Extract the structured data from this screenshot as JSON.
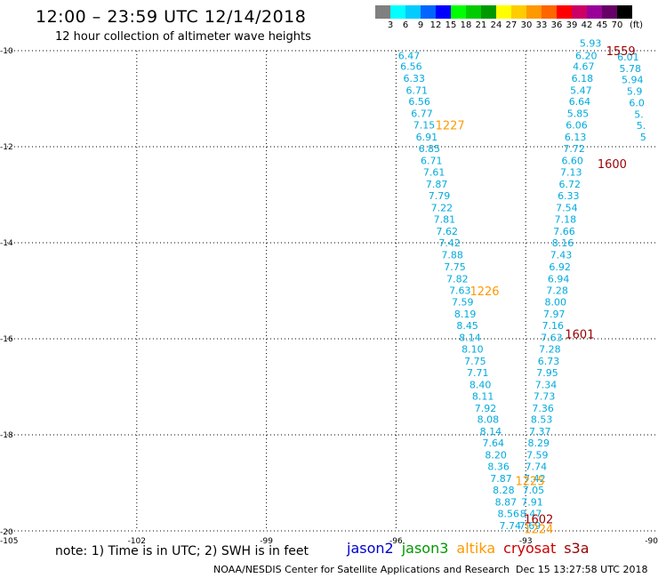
{
  "header": {
    "title": "12:00 – 23:59 UTC 12/14/2018",
    "subtitle": "12 hour collection of altimeter wave heights"
  },
  "scale_legend": {
    "labels": [
      "3",
      "6",
      "9",
      "12",
      "15",
      "18",
      "21",
      "24",
      "27",
      "30",
      "33",
      "36",
      "39",
      "42",
      "45",
      "70"
    ],
    "unit": "(ft)",
    "colors": [
      "#808080",
      "#00ffff",
      "#00ccff",
      "#0066ff",
      "#0000ff",
      "#00ff00",
      "#00cc00",
      "#009900",
      "#ffff00",
      "#ffcc00",
      "#ff9900",
      "#ff6600",
      "#ff0000",
      "#cc0066",
      "#990099",
      "#660066",
      "#000000"
    ]
  },
  "footer": {
    "note": "note: 1) Time is in UTC; 2) SWH is in feet",
    "satellites": [
      {
        "name": "jason2",
        "color": "#0000cc"
      },
      {
        "name": "jason3",
        "color": "#009900"
      },
      {
        "name": "altika",
        "color": "#ff9900"
      },
      {
        "name": "cryosat",
        "color": "#cc0000"
      },
      {
        "name": "s3a",
        "color": "#990000"
      }
    ],
    "credit": "NOAA/NESDIS Center for Satellite Applications and Research",
    "timestamp": "Dec 15 13:27:58 UTC 2018"
  },
  "chart_data": {
    "type": "scatter",
    "title": "12:00 – 23:59 UTC 12/14/2018",
    "subtitle": "12 hour collection of altimeter wave heights",
    "xlim": [
      -105,
      -90
    ],
    "ylim": [
      -20,
      -10
    ],
    "x_ticks": [
      "-105",
      "-102",
      "-99",
      "-96",
      "-93",
      "-90"
    ],
    "y_ticks": [
      "-20",
      "-18",
      "-16",
      "-14",
      "-12",
      "-10"
    ],
    "grid": "dotted",
    "track_color": "#00aadd",
    "time_label_colors": {
      "altika": "#ff9900",
      "s3a": "#990000"
    },
    "tracks": [
      {
        "name": "pass-a",
        "points": [
          {
            "lon": -95.7,
            "lat": -10.1,
            "swh": "6.47"
          },
          {
            "lon": -95.65,
            "lat": -10.32,
            "swh": "6.56"
          },
          {
            "lon": -95.58,
            "lat": -10.57,
            "swh": "6.33"
          },
          {
            "lon": -95.52,
            "lat": -10.82,
            "swh": "6.71"
          },
          {
            "lon": -95.46,
            "lat": -11.06,
            "swh": "6.56"
          },
          {
            "lon": -95.4,
            "lat": -11.31,
            "swh": "6.77"
          },
          {
            "lon": -95.35,
            "lat": -11.55,
            "swh": "7.15"
          },
          {
            "lon": -95.29,
            "lat": -11.8,
            "swh": "6.91"
          },
          {
            "lon": -95.23,
            "lat": -12.04,
            "swh": "6.85"
          },
          {
            "lon": -95.18,
            "lat": -12.29,
            "swh": "6.71"
          },
          {
            "lon": -95.12,
            "lat": -12.53,
            "swh": "7.61"
          },
          {
            "lon": -95.06,
            "lat": -12.78,
            "swh": "7.87"
          },
          {
            "lon": -95.0,
            "lat": -13.02,
            "swh": "7.79"
          },
          {
            "lon": -94.94,
            "lat": -13.27,
            "swh": "7.22"
          },
          {
            "lon": -94.88,
            "lat": -13.51,
            "swh": "7.81"
          },
          {
            "lon": -94.82,
            "lat": -13.76,
            "swh": "7.62"
          },
          {
            "lon": -94.76,
            "lat": -14.0,
            "swh": "7.42"
          },
          {
            "lon": -94.7,
            "lat": -14.25,
            "swh": "7.88"
          },
          {
            "lon": -94.64,
            "lat": -14.5,
            "swh": "7.75"
          },
          {
            "lon": -94.58,
            "lat": -14.75,
            "swh": "7.82"
          },
          {
            "lon": -94.52,
            "lat": -14.99,
            "swh": "7.63"
          },
          {
            "lon": -94.46,
            "lat": -15.23,
            "swh": "7.59"
          },
          {
            "lon": -94.4,
            "lat": -15.48,
            "swh": "8.19"
          },
          {
            "lon": -94.35,
            "lat": -15.72,
            "swh": "8.45"
          },
          {
            "lon": -94.29,
            "lat": -15.97,
            "swh": "8.14"
          },
          {
            "lon": -94.23,
            "lat": -16.21,
            "swh": "8.10"
          },
          {
            "lon": -94.17,
            "lat": -16.46,
            "swh": "7.75"
          },
          {
            "lon": -94.11,
            "lat": -16.7,
            "swh": "7.71"
          },
          {
            "lon": -94.05,
            "lat": -16.95,
            "swh": "8.40"
          },
          {
            "lon": -93.99,
            "lat": -17.19,
            "swh": "8.11"
          },
          {
            "lon": -93.93,
            "lat": -17.44,
            "swh": "7.92"
          },
          {
            "lon": -93.87,
            "lat": -17.68,
            "swh": "8.08"
          },
          {
            "lon": -93.81,
            "lat": -17.93,
            "swh": "8.14"
          },
          {
            "lon": -93.75,
            "lat": -18.17,
            "swh": "7.64"
          },
          {
            "lon": -93.69,
            "lat": -18.42,
            "swh": "8.20"
          },
          {
            "lon": -93.63,
            "lat": -18.66,
            "swh": "8.36"
          },
          {
            "lon": -93.57,
            "lat": -18.91,
            "swh": "7.87"
          },
          {
            "lon": -93.51,
            "lat": -19.15,
            "swh": "8.28"
          },
          {
            "lon": -93.46,
            "lat": -19.4,
            "swh": "8.87"
          },
          {
            "lon": -93.4,
            "lat": -19.64,
            "swh": "8.56"
          },
          {
            "lon": -93.36,
            "lat": -19.89,
            "swh": "7.74"
          }
        ],
        "time_labels": [
          {
            "text": "1227",
            "lon": -94.75,
            "lat": -11.55,
            "kind": "altika"
          },
          {
            "text": "1226",
            "lon": -93.95,
            "lat": -15.0,
            "kind": "altika"
          }
        ]
      },
      {
        "name": "pass-b",
        "points": [
          {
            "lon": -92.9,
            "lat": -19.89,
            "swh": "7.69"
          },
          {
            "lon": -92.88,
            "lat": -19.64,
            "swh": "8.47"
          },
          {
            "lon": -92.85,
            "lat": -19.4,
            "swh": "7.91"
          },
          {
            "lon": -92.82,
            "lat": -19.15,
            "swh": "7.05"
          },
          {
            "lon": -92.79,
            "lat": -18.91,
            "swh": "7.42"
          },
          {
            "lon": -92.76,
            "lat": -18.66,
            "swh": "7.74"
          },
          {
            "lon": -92.73,
            "lat": -18.42,
            "swh": "7.59"
          },
          {
            "lon": -92.7,
            "lat": -18.17,
            "swh": "8.29"
          },
          {
            "lon": -92.67,
            "lat": -17.93,
            "swh": "7.37"
          },
          {
            "lon": -92.63,
            "lat": -17.68,
            "swh": "8.53"
          },
          {
            "lon": -92.6,
            "lat": -17.44,
            "swh": "7.36"
          },
          {
            "lon": -92.57,
            "lat": -17.19,
            "swh": "7.73"
          },
          {
            "lon": -92.53,
            "lat": -16.95,
            "swh": "7.34"
          },
          {
            "lon": -92.5,
            "lat": -16.7,
            "swh": "7.95"
          },
          {
            "lon": -92.47,
            "lat": -16.46,
            "swh": "6.73"
          },
          {
            "lon": -92.44,
            "lat": -16.21,
            "swh": "7.28"
          },
          {
            "lon": -92.4,
            "lat": -15.97,
            "swh": "7.63"
          },
          {
            "lon": -92.37,
            "lat": -15.72,
            "swh": "7.16"
          },
          {
            "lon": -92.34,
            "lat": -15.48,
            "swh": "7.97"
          },
          {
            "lon": -92.31,
            "lat": -15.23,
            "swh": "8.00"
          },
          {
            "lon": -92.27,
            "lat": -14.99,
            "swh": "7.28"
          },
          {
            "lon": -92.24,
            "lat": -14.75,
            "swh": "6.94"
          },
          {
            "lon": -92.21,
            "lat": -14.5,
            "swh": "6.92"
          },
          {
            "lon": -92.18,
            "lat": -14.25,
            "swh": "7.43"
          },
          {
            "lon": -92.14,
            "lat": -14.0,
            "swh": "8.16"
          },
          {
            "lon": -92.11,
            "lat": -13.76,
            "swh": "7.66"
          },
          {
            "lon": -92.08,
            "lat": -13.51,
            "swh": "7.18"
          },
          {
            "lon": -92.05,
            "lat": -13.27,
            "swh": "7.54"
          },
          {
            "lon": -92.01,
            "lat": -13.02,
            "swh": "6.33"
          },
          {
            "lon": -91.98,
            "lat": -12.78,
            "swh": "6.72"
          },
          {
            "lon": -91.95,
            "lat": -12.53,
            "swh": "7.13"
          },
          {
            "lon": -91.92,
            "lat": -12.29,
            "swh": "6.60"
          },
          {
            "lon": -91.88,
            "lat": -12.04,
            "swh": "7.72"
          },
          {
            "lon": -91.85,
            "lat": -11.8,
            "swh": "6.13"
          },
          {
            "lon": -91.82,
            "lat": -11.55,
            "swh": "6.06"
          },
          {
            "lon": -91.79,
            "lat": -11.31,
            "swh": "5.85"
          },
          {
            "lon": -91.75,
            "lat": -11.06,
            "swh": "6.64"
          },
          {
            "lon": -91.72,
            "lat": -10.82,
            "swh": "5.47"
          },
          {
            "lon": -91.69,
            "lat": -10.57,
            "swh": "6.18"
          },
          {
            "lon": -91.66,
            "lat": -10.32,
            "swh": "4.67"
          },
          {
            "lon": -91.6,
            "lat": -10.1,
            "swh": "6.20"
          }
        ],
        "time_labels": [
          {
            "text": "1600",
            "lon": -91.0,
            "lat": -12.35,
            "kind": "s3a"
          },
          {
            "text": "1601",
            "lon": -91.75,
            "lat": -15.9,
            "kind": "s3a"
          },
          {
            "text": "1602",
            "lon": -92.7,
            "lat": -19.75,
            "kind": "s3a"
          },
          {
            "text": "1225",
            "lon": -92.9,
            "lat": -18.95,
            "kind": "altika"
          },
          {
            "text": "1224",
            "lon": -92.7,
            "lat": -19.95,
            "kind": "altika"
          }
        ]
      },
      {
        "name": "pass-c",
        "points": [
          {
            "lon": -91.5,
            "lat": -9.84,
            "swh": "5.93"
          },
          {
            "lon": -90.63,
            "lat": -10.13,
            "swh": "6.01"
          },
          {
            "lon": -90.58,
            "lat": -10.37,
            "swh": "5.78"
          },
          {
            "lon": -90.53,
            "lat": -10.6,
            "swh": "5.94"
          },
          {
            "lon": -90.48,
            "lat": -10.84,
            "swh": "5.9"
          },
          {
            "lon": -90.43,
            "lat": -11.08,
            "swh": "6.0"
          },
          {
            "lon": -90.38,
            "lat": -11.32,
            "swh": "5."
          },
          {
            "lon": -90.33,
            "lat": -11.56,
            "swh": "5."
          },
          {
            "lon": -90.28,
            "lat": -11.8,
            "swh": "5"
          }
        ],
        "time_labels": [
          {
            "text": "1559",
            "lon": -90.8,
            "lat": -10.0,
            "kind": "s3a"
          }
        ]
      }
    ]
  }
}
